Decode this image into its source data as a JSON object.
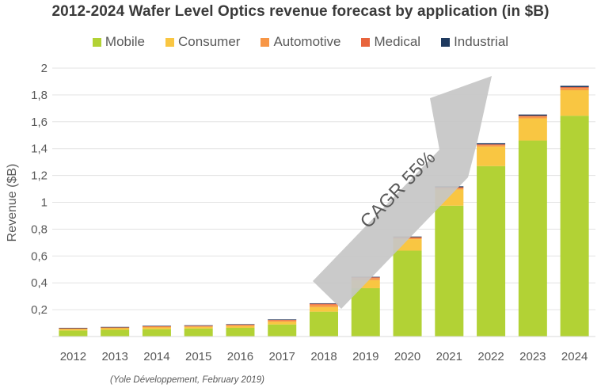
{
  "chart_data": {
    "type": "bar",
    "stacked": true,
    "title": "2012-2024 Wafer Level Optics revenue forecast by application (in $B)",
    "xlabel": "",
    "ylabel": "Revenue ($B)",
    "ylim": [
      0,
      2
    ],
    "yticks": [
      "0,2",
      "0,4",
      "0,6",
      "0,8",
      "1",
      "1,2",
      "1,4",
      "1,6",
      "1,8",
      "2"
    ],
    "ytick_values": [
      0.2,
      0.4,
      0.6,
      0.8,
      1.0,
      1.2,
      1.4,
      1.6,
      1.8,
      2.0
    ],
    "grid": true,
    "legend_position": "top",
    "categories": [
      "2012",
      "2013",
      "2014",
      "2015",
      "2016",
      "2017",
      "2018",
      "2019",
      "2020",
      "2021",
      "2022",
      "2023",
      "2024"
    ],
    "series": [
      {
        "name": "Mobile",
        "color": "#b2d235",
        "values": [
          0.045,
          0.05,
          0.055,
          0.06,
          0.065,
          0.09,
          0.185,
          0.36,
          0.64,
          0.975,
          1.27,
          1.46,
          1.645
        ]
      },
      {
        "name": "Consumer",
        "color": "#f9c642",
        "values": [
          0.01,
          0.012,
          0.013,
          0.012,
          0.013,
          0.02,
          0.035,
          0.06,
          0.085,
          0.12,
          0.145,
          0.165,
          0.19
        ]
      },
      {
        "name": "Automotive",
        "color": "#f79646",
        "values": [
          0.005,
          0.005,
          0.006,
          0.006,
          0.008,
          0.01,
          0.017,
          0.015,
          0.01,
          0.012,
          0.012,
          0.014,
          0.016
        ]
      },
      {
        "name": "Medical",
        "color": "#e8643c",
        "values": [
          0.003,
          0.003,
          0.004,
          0.004,
          0.004,
          0.005,
          0.007,
          0.006,
          0.005,
          0.005,
          0.005,
          0.006,
          0.007
        ]
      },
      {
        "name": "Industrial",
        "color": "#1f3a5f",
        "values": [
          0.002,
          0.002,
          0.002,
          0.002,
          0.002,
          0.003,
          0.004,
          0.004,
          0.005,
          0.007,
          0.008,
          0.009,
          0.01
        ]
      }
    ],
    "annotations": [
      {
        "text": "CAGR 55%"
      }
    ]
  },
  "source_note": "(Yole Développement, February 2019)"
}
